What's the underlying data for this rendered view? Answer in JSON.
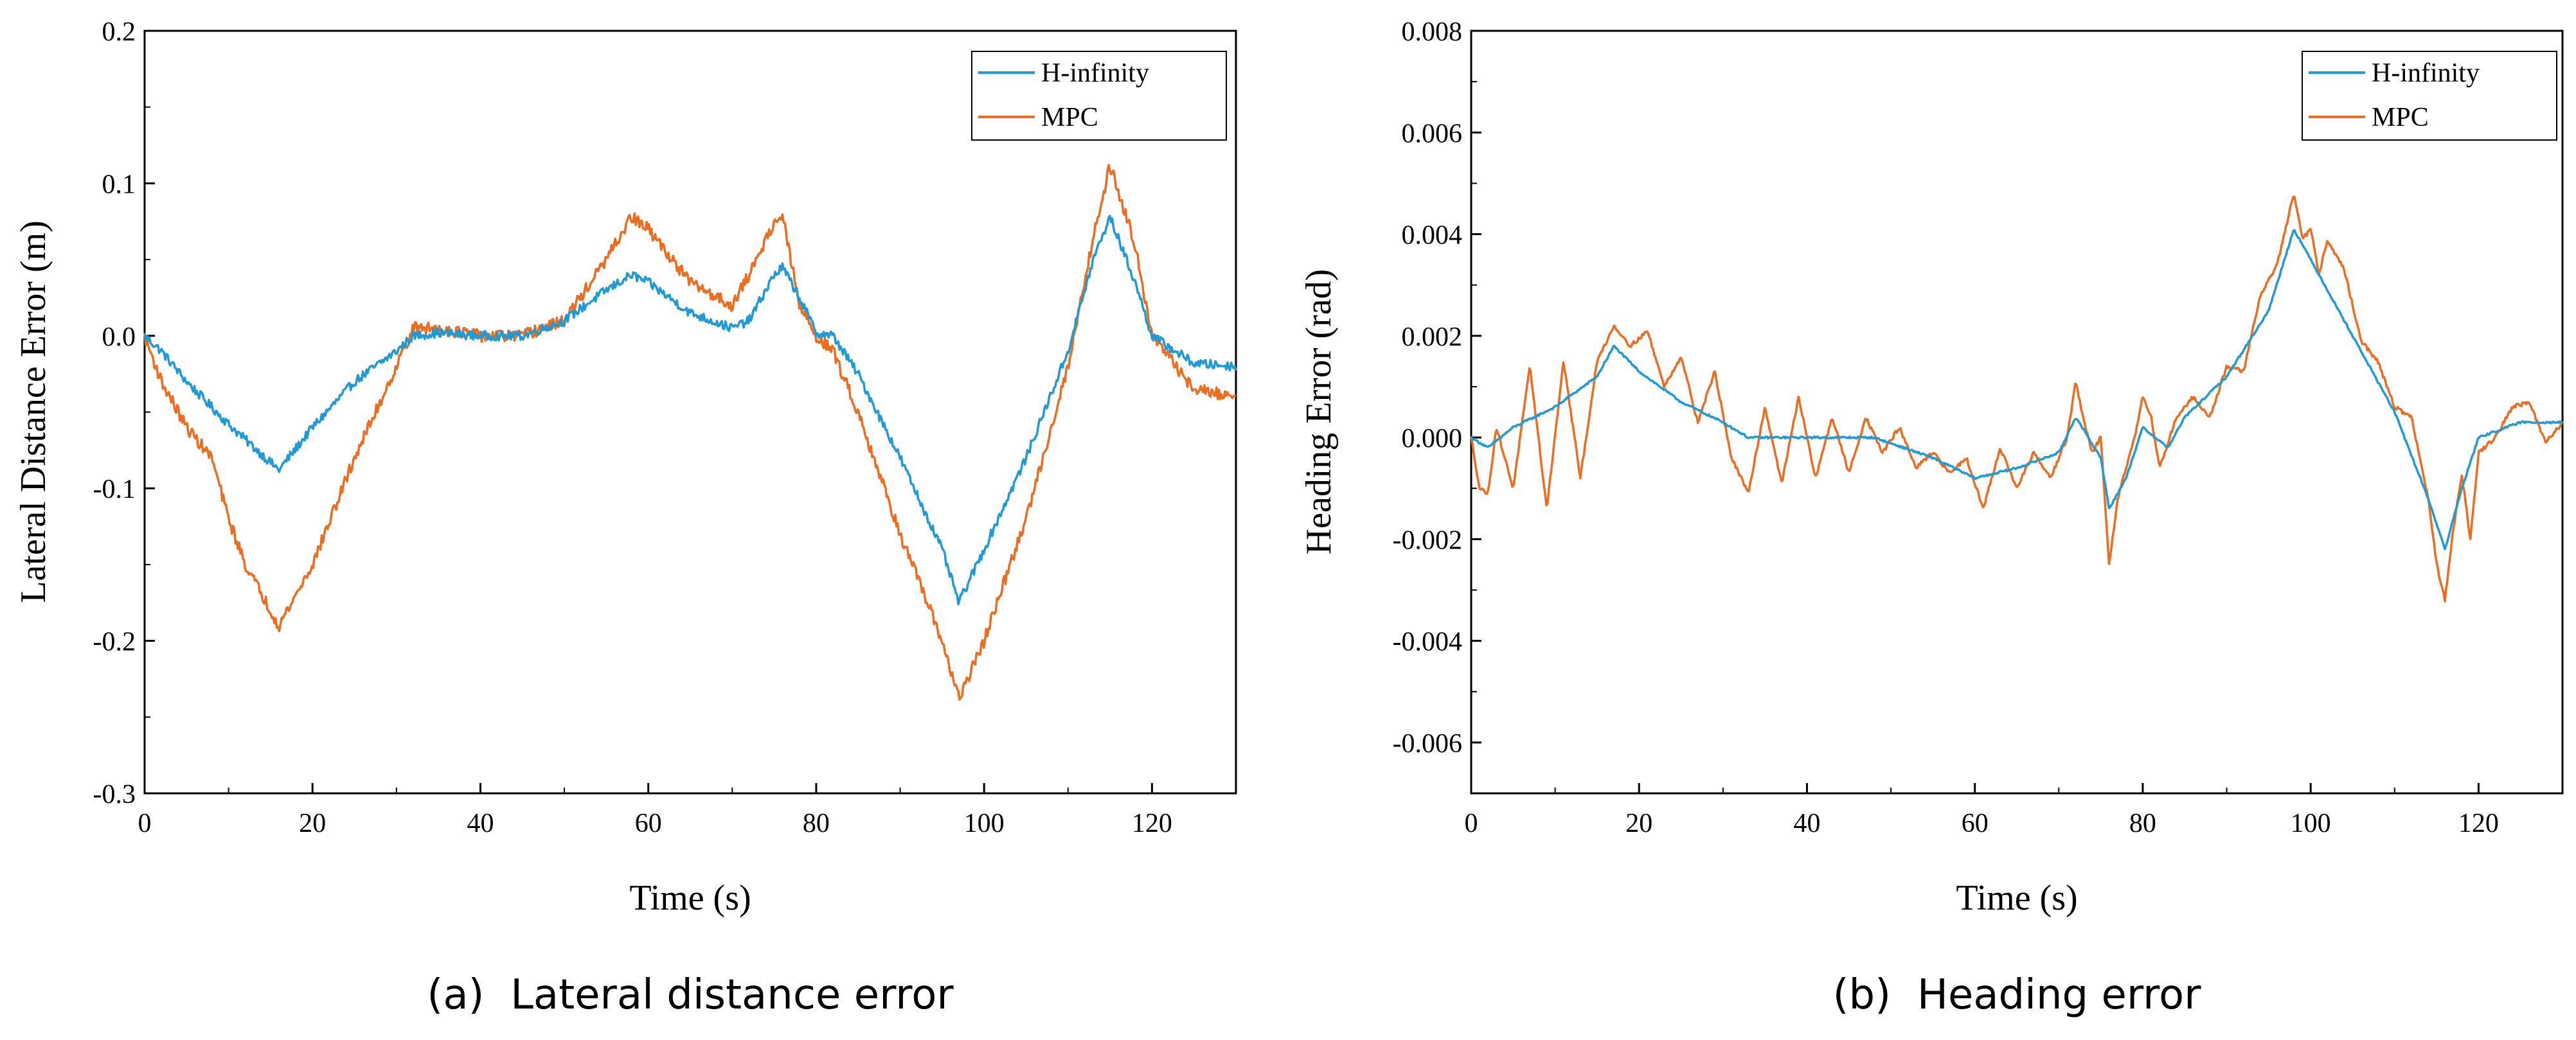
{
  "colors": {
    "h_infinity": "#1f9ad6",
    "mpc": "#ee6c1f",
    "axis": "#000000"
  },
  "chart_data": [
    {
      "type": "line",
      "caption": "(a)  Lateral distance error",
      "xlabel": "Time (s)",
      "ylabel": "Lateral Distance Error (m)",
      "xlim": [
        0,
        130
      ],
      "ylim": [
        -0.3,
        0.2
      ],
      "xticks": [
        0,
        20,
        40,
        60,
        80,
        100,
        120
      ],
      "xtick_labels": [
        "0",
        "20",
        "40",
        "60",
        "80",
        "100",
        "120"
      ],
      "yticks": [
        -0.3,
        -0.2,
        -0.1,
        0.0,
        0.1,
        0.2
      ],
      "ytick_labels": [
        "-0.3",
        "-0.2",
        "-0.1",
        "0.0",
        "0.1",
        "0.2"
      ],
      "legend": [
        "H-infinity",
        "MPC"
      ],
      "legend_position": "top-right",
      "noise": {
        "H-infinity": 0.003,
        "MPC": 0.004
      },
      "series": [
        {
          "name": "H-infinity",
          "x": [
            0,
            2,
            5,
            10,
            16,
            20,
            25,
            30,
            32,
            35,
            40,
            45,
            50,
            55,
            58,
            60,
            65,
            70,
            72,
            75,
            76,
            78,
            80,
            82,
            85,
            90,
            95,
            97,
            100,
            105,
            110,
            113,
            115,
            118,
            120,
            125,
            130
          ],
          "y": [
            0,
            -0.01,
            -0.03,
            -0.058,
            -0.088,
            -0.06,
            -0.03,
            -0.01,
            0.0,
            0.002,
            0.0,
            0.0,
            0.01,
            0.03,
            0.04,
            0.035,
            0.015,
            0.005,
            0.01,
            0.04,
            0.045,
            0.025,
            0.002,
            0.0,
            -0.025,
            -0.08,
            -0.14,
            -0.175,
            -0.14,
            -0.08,
            -0.01,
            0.05,
            0.078,
            0.035,
            0.0,
            -0.018,
            -0.02
          ]
        },
        {
          "name": "MPC",
          "x": [
            0,
            2,
            5,
            8,
            10,
            12,
            15,
            16,
            20,
            25,
            30,
            32,
            35,
            40,
            45,
            50,
            55,
            58,
            60,
            65,
            70,
            72,
            75,
            76,
            78,
            80,
            82,
            85,
            90,
            95,
            97,
            100,
            105,
            110,
            113,
            115,
            118,
            120,
            125,
            130
          ],
          "y": [
            0,
            -0.03,
            -0.06,
            -0.08,
            -0.12,
            -0.15,
            -0.18,
            -0.19,
            -0.15,
            -0.08,
            -0.02,
            0.005,
            0.005,
            0.0,
            0.0,
            0.01,
            0.05,
            0.078,
            0.07,
            0.035,
            0.02,
            0.04,
            0.075,
            0.078,
            0.02,
            0.0,
            -0.01,
            -0.05,
            -0.13,
            -0.2,
            -0.238,
            -0.2,
            -0.12,
            -0.02,
            0.065,
            0.112,
            0.06,
            0.0,
            -0.035,
            -0.04
          ]
        }
      ]
    },
    {
      "type": "line",
      "caption": "(b)  Heading error",
      "xlabel": "Time (s)",
      "ylabel": "Heading Error (rad)",
      "xlim": [
        0,
        130
      ],
      "ylim": [
        -0.007,
        0.008
      ],
      "xticks": [
        0,
        20,
        40,
        60,
        80,
        100,
        120
      ],
      "xtick_labels": [
        "0",
        "20",
        "40",
        "60",
        "80",
        "100",
        "120"
      ],
      "yticks": [
        -0.006,
        -0.004,
        -0.002,
        0.0,
        0.002,
        0.004,
        0.006,
        0.008
      ],
      "ytick_labels": [
        "-0.006",
        "-0.004",
        "-0.002",
        "0.000",
        "0.002",
        "0.004",
        "0.006",
        "0.008"
      ],
      "legend": [
        "H-infinity",
        "MPC"
      ],
      "legend_position": "top-right",
      "noise": {
        "H-infinity": 2e-05,
        "MPC": 4e-05
      },
      "series": [
        {
          "name": "H-infinity",
          "x": [
            0,
            2,
            5,
            10,
            15,
            17,
            20,
            25,
            30,
            33,
            40,
            48,
            55,
            60,
            65,
            70,
            72,
            75,
            76,
            78,
            80,
            83,
            85,
            90,
            95,
            98,
            100,
            105,
            110,
            114,
            116,
            118,
            120,
            125,
            130
          ],
          "y": [
            0,
            -0.0002,
            0.0002,
            0.0006,
            0.0012,
            0.0018,
            0.0013,
            0.0007,
            0.0003,
            0.0,
            0.0,
            0.0,
            -0.0004,
            -0.0008,
            -0.0006,
            -0.0003,
            0.0004,
            -0.0004,
            -0.0014,
            -0.0008,
            0.0002,
            -0.0002,
            0.0004,
            0.0012,
            0.0025,
            0.0041,
            0.0035,
            0.002,
            0.0005,
            -0.0012,
            -0.0022,
            -0.001,
            0.0,
            0.0003,
            0.0003
          ]
        },
        {
          "name": "MPC",
          "x": [
            0,
            1,
            2,
            3,
            5,
            7,
            9,
            11,
            13,
            15,
            17,
            19,
            21,
            23,
            25,
            27,
            29,
            31,
            33,
            35,
            37,
            39,
            41,
            43,
            45,
            47,
            49,
            51,
            53,
            55,
            57,
            59,
            61,
            63,
            65,
            67,
            69,
            71,
            72,
            73,
            74,
            75,
            76,
            77,
            78,
            79,
            80,
            81,
            82,
            84,
            86,
            88,
            90,
            92,
            94,
            96,
            98,
            99,
            100,
            101,
            102,
            104,
            106,
            108,
            110,
            112,
            114,
            115,
            116,
            117,
            118,
            119,
            120,
            122,
            124,
            126,
            128,
            130
          ],
          "y": [
            0,
            -0.001,
            -0.0011,
            0.0002,
            -0.001,
            0.0014,
            -0.0014,
            0.0015,
            -0.0008,
            0.0015,
            0.0022,
            0.0018,
            0.0021,
            0.001,
            0.0016,
            0.0003,
            0.0013,
            -0.0004,
            -0.0011,
            0.0006,
            -0.0009,
            0.0008,
            -0.0008,
            0.0004,
            -0.0007,
            0.0004,
            -0.0003,
            0.0002,
            -0.0006,
            -0.0003,
            -0.0007,
            -0.0004,
            -0.0014,
            -0.0002,
            -0.001,
            -0.0003,
            -0.0008,
            0.0,
            0.0011,
            0.0003,
            -0.0003,
            0.0,
            -0.0025,
            -0.0012,
            -0.0006,
            0.0,
            0.0008,
            0.0004,
            -0.0006,
            0.0004,
            0.0008,
            0.0004,
            0.0014,
            0.0013,
            0.0028,
            0.0034,
            0.0048,
            0.0039,
            0.0041,
            0.0032,
            0.0039,
            0.0033,
            0.0019,
            0.0015,
            0.0006,
            0.0004,
            -0.0012,
            -0.0025,
            -0.0032,
            -0.0018,
            -0.0007,
            -0.002,
            -0.0003,
            0.0,
            0.0006,
            0.0007,
            -0.0001,
            0.0003
          ]
        }
      ]
    }
  ]
}
